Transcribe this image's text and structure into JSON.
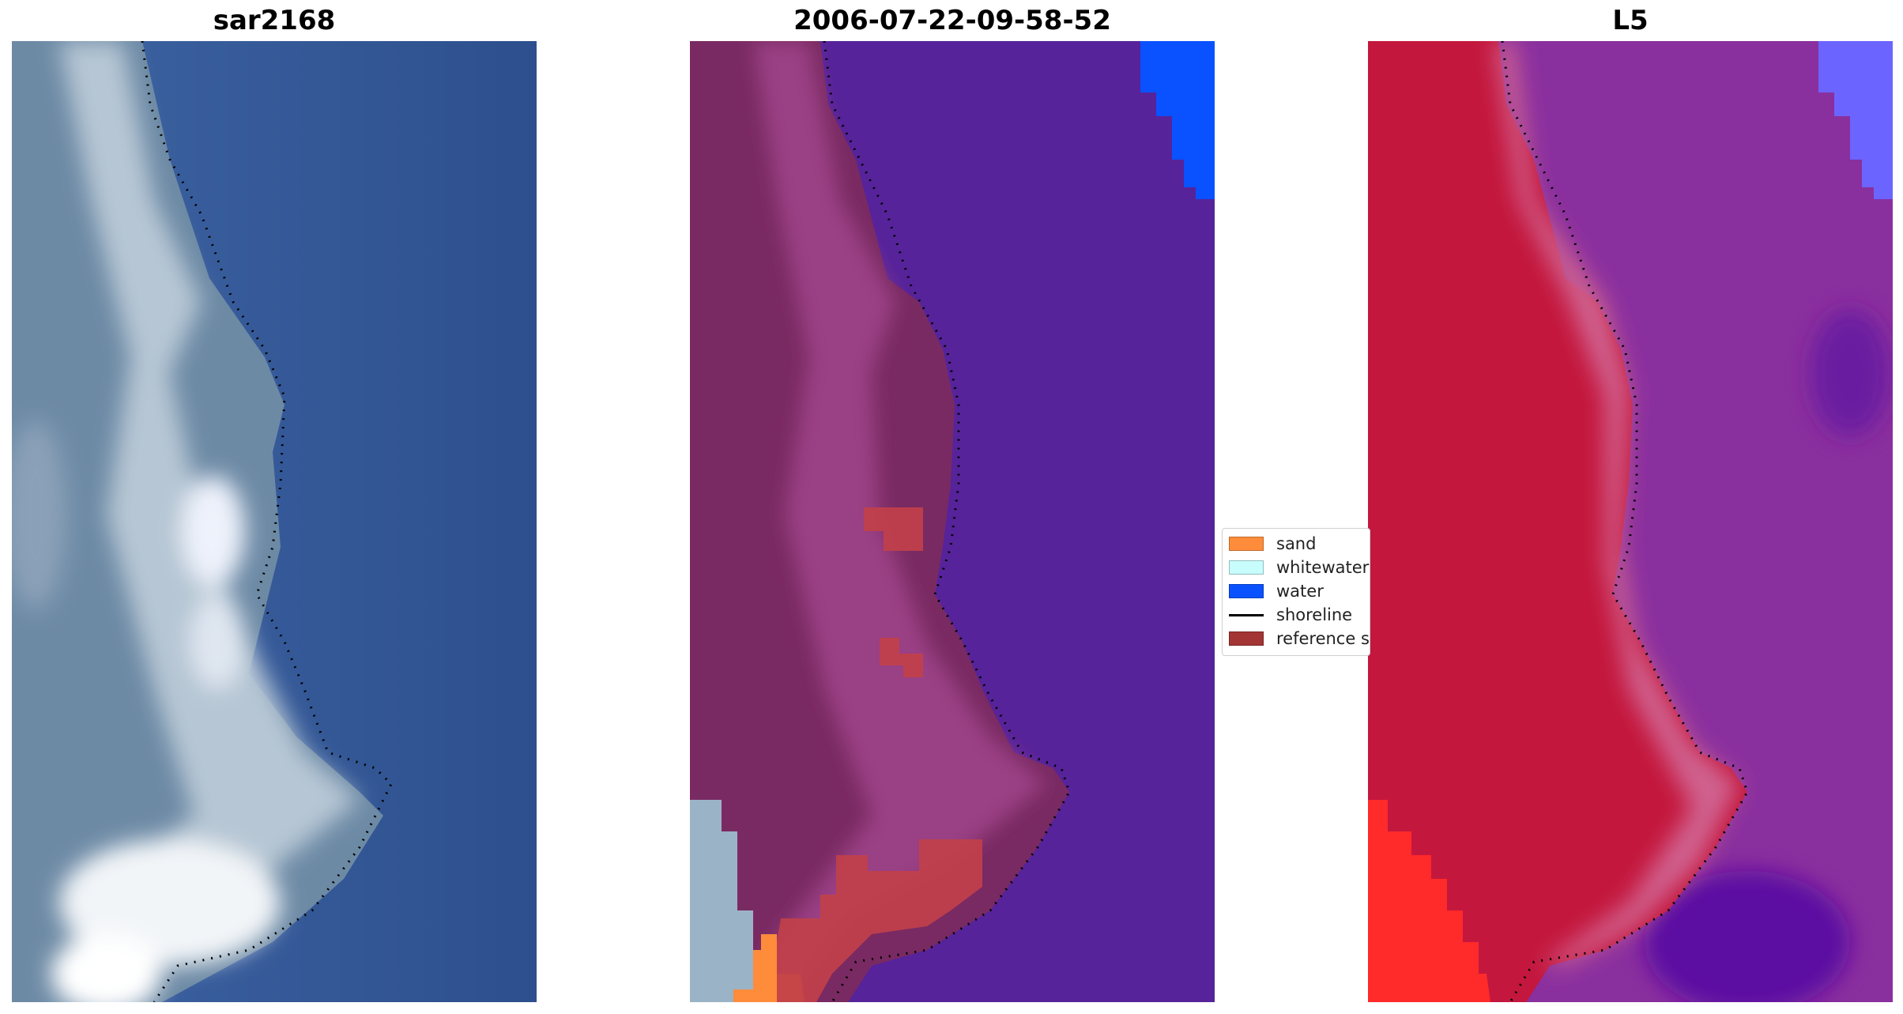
{
  "panels": [
    {
      "title": "sar2168"
    },
    {
      "title": "2006-07-22-09-58-52"
    },
    {
      "title": "L5"
    }
  ],
  "legend": {
    "items": [
      {
        "label": "sand",
        "color": "#ff8c3a",
        "kind": "patch"
      },
      {
        "label": "whitewater",
        "color": "#c8fdfd",
        "kind": "patch"
      },
      {
        "label": "water",
        "color": "#0a52ff",
        "kind": "patch"
      },
      {
        "label": "shoreline",
        "color": "#000000",
        "kind": "line"
      },
      {
        "label": "reference shoreline buffer",
        "color": "#a33535",
        "kind": "patch"
      }
    ]
  },
  "colors": {
    "rgb_water": "#3a5a96",
    "rgb_land": "#6f8aa6",
    "class_water": "#56239a",
    "class_land": "#7a2a62",
    "false_color_land": "#c4173d",
    "false_color_water": "#8a2f9e"
  }
}
